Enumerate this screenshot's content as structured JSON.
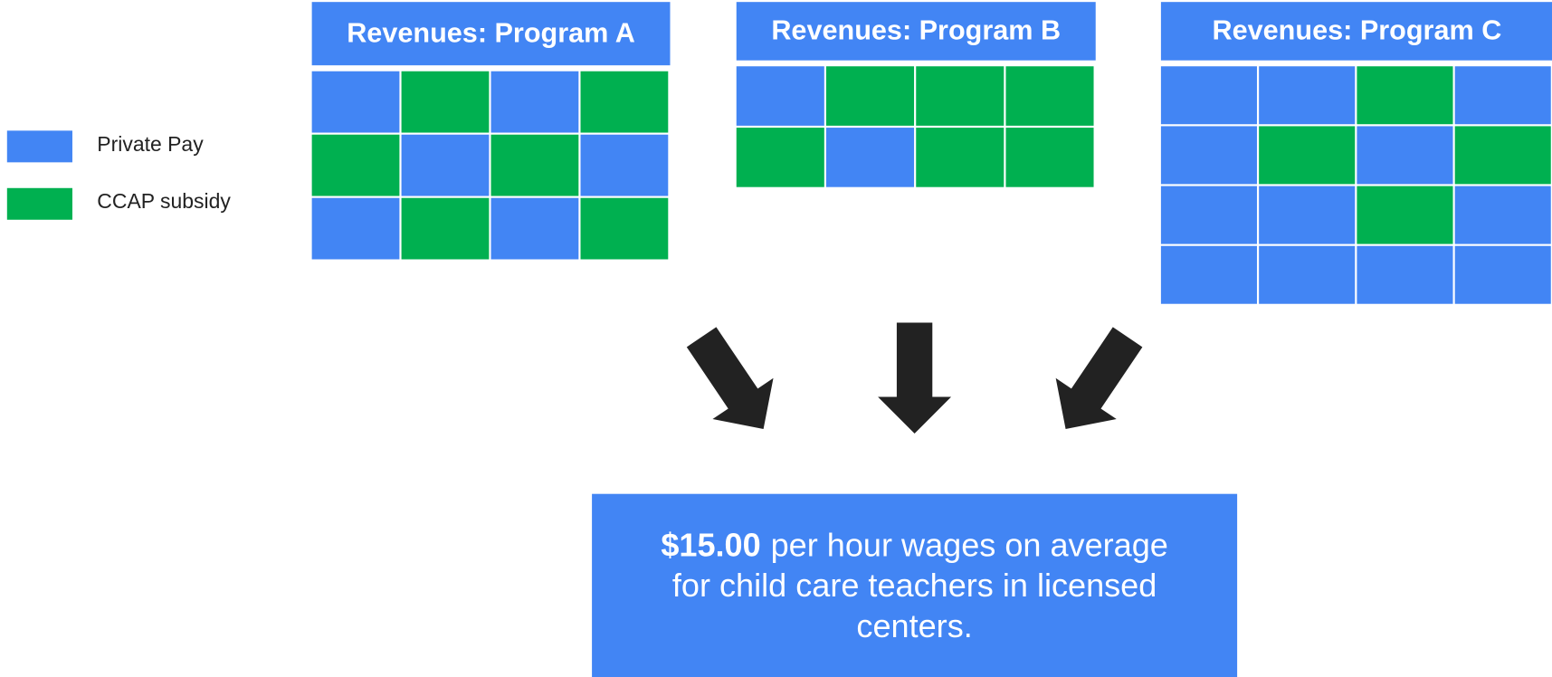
{
  "legend": [
    {
      "label": "Private Pay",
      "color": "#4285f4"
    },
    {
      "label": "CCAP subsidy",
      "color": "#00b050"
    }
  ],
  "programs": [
    {
      "title": "Revenues: Program A",
      "rows": [
        [
          "#4285f4",
          "#00b050",
          "#4285f4",
          "#00b050"
        ],
        [
          "#00b050",
          "#4285f4",
          "#00b050",
          "#4285f4"
        ],
        [
          "#4285f4",
          "#00b050",
          "#4285f4",
          "#00b050"
        ]
      ]
    },
    {
      "title": "Revenues: Program B",
      "rows": [
        [
          "#4285f4",
          "#00b050",
          "#00b050",
          "#00b050"
        ],
        [
          "#00b050",
          "#4285f4",
          "#00b050",
          "#00b050"
        ]
      ]
    },
    {
      "title": "Revenues: Program C",
      "rows": [
        [
          "#4285f4",
          "#4285f4",
          "#00b050",
          "#4285f4"
        ],
        [
          "#4285f4",
          "#00b050",
          "#4285f4",
          "#00b050"
        ],
        [
          "#4285f4",
          "#4285f4",
          "#00b050",
          "#4285f4"
        ],
        [
          "#4285f4",
          "#4285f4",
          "#4285f4",
          "#4285f4"
        ]
      ]
    }
  ],
  "result": {
    "highlight": "$15.00",
    "lines": [
      "per hour wages on average",
      "for child care teachers in licensed",
      "centers."
    ]
  }
}
